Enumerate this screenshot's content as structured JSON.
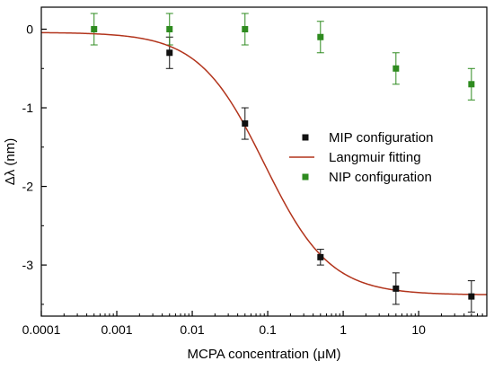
{
  "chart_data": {
    "type": "scatter",
    "xscale": "log",
    "xlim": [
      0.0001,
      80
    ],
    "ylim": [
      -3.65,
      0.28
    ],
    "xlabel": "MCPA concentration (μM)",
    "ylabel": "Δλ (nm)",
    "xticks": [
      {
        "value": 0.0001,
        "label": "0.0001"
      },
      {
        "value": 0.001,
        "label": "0.001"
      },
      {
        "value": 0.01,
        "label": "0.01"
      },
      {
        "value": 0.1,
        "label": "0.1"
      },
      {
        "value": 1,
        "label": "1"
      },
      {
        "value": 10,
        "label": "10"
      }
    ],
    "yticks": [
      {
        "value": 0,
        "label": "0"
      },
      {
        "value": -1,
        "label": "-1"
      },
      {
        "value": -2,
        "label": "-2"
      },
      {
        "value": -3,
        "label": "-3"
      }
    ],
    "grid": false,
    "legend_position": "center-right",
    "series": [
      {
        "name": "MIP configuration",
        "kind": "points",
        "color": "#111111",
        "x": [
          0.005,
          0.05,
          0.5,
          5,
          50
        ],
        "y": [
          -0.3,
          -1.2,
          -2.9,
          -3.3,
          -3.4
        ],
        "yerr": [
          0.2,
          0.2,
          0.1,
          0.2,
          0.2
        ]
      },
      {
        "name": "Langmuir fitting",
        "kind": "curve",
        "color": "#b2341c",
        "model": {
          "top": -0.04,
          "bottom": -3.38,
          "x50": 0.09,
          "hill": 1.0
        }
      },
      {
        "name": "NIP configuration",
        "kind": "points",
        "color": "#2e8b1f",
        "x": [
          0.0005,
          0.005,
          0.05,
          0.5,
          5,
          50
        ],
        "y": [
          0,
          0,
          0,
          -0.1,
          -0.5,
          -0.7
        ],
        "yerr": [
          0.2,
          0.2,
          0.2,
          0.2,
          0.2,
          0.2
        ]
      }
    ]
  }
}
